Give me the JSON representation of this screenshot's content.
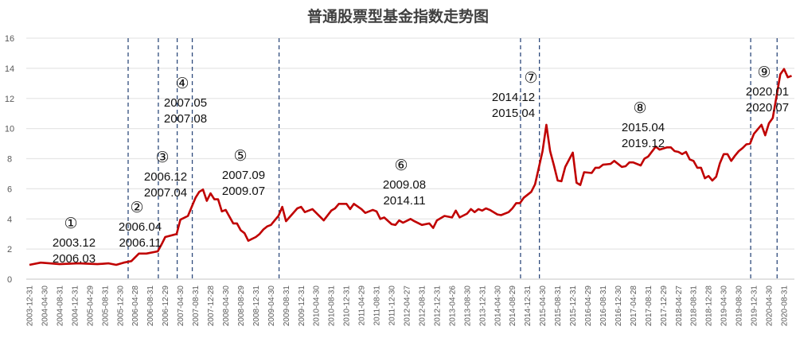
{
  "chart_data": {
    "type": "line",
    "title": "普通股票型基金指数走势图",
    "xlabel": "",
    "ylabel": "",
    "ylim": [
      0,
      16
    ],
    "yticks": [
      0,
      2,
      4,
      6,
      8,
      10,
      12,
      14,
      16
    ],
    "grid": "horizontal",
    "colors": {
      "line": "#C00000",
      "divider": "#2F4B7C",
      "grid": "#E6E6E6"
    },
    "xtick_labels": [
      "2003-12-31",
      "2004-04-30",
      "2004-08-31",
      "2004-12-31",
      "2005-04-29",
      "2005-08-31",
      "2005-12-30",
      "2006-04-28",
      "2006-08-31",
      "2006-12-29",
      "2007-04-30",
      "2007-08-31",
      "2007-12-28",
      "2008-04-30",
      "2008-08-29",
      "2008-12-31",
      "2009-04-30",
      "2009-08-31",
      "2009-12-31",
      "2010-04-30",
      "2010-08-31",
      "2010-12-31",
      "2011-04-29",
      "2011-08-31",
      "2011-12-30",
      "2012-04-27",
      "2012-08-31",
      "2012-12-31",
      "2013-04-26",
      "2013-08-30",
      "2013-12-31",
      "2014-04-30",
      "2014-08-29",
      "2014-12-31",
      "2015-04-30",
      "2015-08-31",
      "2015-12-31",
      "2016-04-29",
      "2016-08-31",
      "2016-12-30",
      "2017-04-28",
      "2017-08-31",
      "2017-12-29",
      "2018-04-27",
      "2018-08-31",
      "2018-12-28",
      "2019-04-30",
      "2019-08-30",
      "2019-12-31",
      "2020-04-30",
      "2020-08-31"
    ],
    "series": [
      {
        "x": [
          "2003-12",
          "2004-03",
          "2004-08",
          "2005-01",
          "2005-06",
          "2005-09",
          "2005-11",
          "2006-01",
          "2006-03",
          "2006-05",
          "2006-07",
          "2006-10",
          "2006-11",
          "2006-12",
          "2007-03",
          "2007-04",
          "2007-06",
          "2007-08",
          "2007-09",
          "2007-10",
          "2007-11",
          "2007-12",
          "2008-01",
          "2008-02",
          "2008-03",
          "2008-04",
          "2008-06",
          "2008-07",
          "2008-08",
          "2008-09",
          "2008-10",
          "2008-12",
          "2009-01",
          "2009-02",
          "2009-03",
          "2009-04",
          "2009-05",
          "2009-06",
          "2009-07",
          "2009-08",
          "2009-11",
          "2009-12",
          "2010-01",
          "2010-03",
          "2010-06",
          "2010-08",
          "2010-09",
          "2010-10",
          "2010-12",
          "2011-01",
          "2011-02",
          "2011-04",
          "2011-05",
          "2011-07",
          "2011-08",
          "2011-09",
          "2011-10",
          "2011-12",
          "2012-01",
          "2012-02",
          "2012-03",
          "2012-05",
          "2012-06",
          "2012-08",
          "2012-10",
          "2012-11",
          "2012-12",
          "2013-02",
          "2013-04",
          "2013-05",
          "2013-06",
          "2013-08",
          "2013-09",
          "2013-10",
          "2013-11",
          "2013-12",
          "2014-01",
          "2014-02",
          "2014-04",
          "2014-05",
          "2014-07",
          "2014-08",
          "2014-09",
          "2014-10",
          "2014-11",
          "2015-01",
          "2015-02",
          "2015-04",
          "2015-05",
          "2015-06",
          "2015-07",
          "2015-08",
          "2015-09",
          "2015-10",
          "2015-12",
          "2016-01",
          "2016-02",
          "2016-03",
          "2016-05",
          "2016-06",
          "2016-07",
          "2016-08",
          "2016-10",
          "2016-11",
          "2017-01",
          "2017-02",
          "2017-03",
          "2017-04",
          "2017-06",
          "2017-07",
          "2017-08",
          "2017-10",
          "2017-11",
          "2018-01",
          "2018-02",
          "2018-03",
          "2018-04",
          "2018-05",
          "2018-06",
          "2018-07",
          "2018-08",
          "2018-09",
          "2018-10",
          "2018-11",
          "2018-12",
          "2019-01",
          "2019-02",
          "2019-03",
          "2019-04",
          "2019-05",
          "2019-06",
          "2019-07",
          "2019-08",
          "2019-09",
          "2019-10",
          "2019-11",
          "2019-12",
          "2020-02",
          "2020-03",
          "2020-04",
          "2020-05",
          "2020-07",
          "2020-08",
          "2020-09",
          "2020-10"
        ],
        "values": [
          0.95,
          1.1,
          1.0,
          1.05,
          1.0,
          1.05,
          0.95,
          1.1,
          1.2,
          1.7,
          1.7,
          1.85,
          2.3,
          2.8,
          3.0,
          3.95,
          4.2,
          5.4,
          5.8,
          5.95,
          5.2,
          5.7,
          5.3,
          5.3,
          4.5,
          4.6,
          3.7,
          3.7,
          3.25,
          3.05,
          2.55,
          2.8,
          3.0,
          3.3,
          3.5,
          3.6,
          3.9,
          4.2,
          4.8,
          3.85,
          4.7,
          4.8,
          4.45,
          4.65,
          3.9,
          4.55,
          4.7,
          5.0,
          5.0,
          4.65,
          5.0,
          4.65,
          4.4,
          4.6,
          4.5,
          4.0,
          4.1,
          3.65,
          3.6,
          3.9,
          3.75,
          4.0,
          3.85,
          3.6,
          3.7,
          3.4,
          3.9,
          4.2,
          4.1,
          4.55,
          4.1,
          4.35,
          4.65,
          4.45,
          4.65,
          4.55,
          4.7,
          4.6,
          4.3,
          4.25,
          4.45,
          4.7,
          5.05,
          5.05,
          5.4,
          5.8,
          6.3,
          8.5,
          10.25,
          8.5,
          7.55,
          6.55,
          6.5,
          7.45,
          8.4,
          6.4,
          6.25,
          7.1,
          7.05,
          7.4,
          7.4,
          7.6,
          7.65,
          7.85,
          7.45,
          7.5,
          7.75,
          7.75,
          7.55,
          8.0,
          8.15,
          8.8,
          8.6,
          8.75,
          8.75,
          8.5,
          8.45,
          8.3,
          8.45,
          7.95,
          7.85,
          7.4,
          7.4,
          6.7,
          6.85,
          6.55,
          6.8,
          7.7,
          8.3,
          8.3,
          7.85,
          8.2,
          8.5,
          8.7,
          8.95,
          9.0,
          9.65,
          10.25,
          9.55,
          10.35,
          10.7,
          13.6,
          13.95,
          13.4,
          13.5
        ]
      }
    ],
    "dividers": [
      "2006-03",
      "2006-11",
      "2007-04",
      "2007-08",
      "2009-07",
      "2014-11",
      "2015-04",
      "2019-12",
      "2020-07"
    ],
    "annotations": [
      {
        "num": "①",
        "start": "2003.12",
        "end": "2006.03"
      },
      {
        "num": "②",
        "start": "2006.04",
        "end": "2006.11"
      },
      {
        "num": "③",
        "start": "2006.12",
        "end": "2007.04"
      },
      {
        "num": "④",
        "start": "2007.05",
        "end": "2007.08"
      },
      {
        "num": "⑤",
        "start": "2007.09",
        "end": "2009.07"
      },
      {
        "num": "⑥",
        "start": "2009.08",
        "end": "2014.11"
      },
      {
        "num": "⑦",
        "start": "2014.12",
        "end": "2015.04"
      },
      {
        "num": "⑧",
        "start": "2015.04",
        "end": "2019.12"
      },
      {
        "num": "⑨",
        "start": "2020.01",
        "end": "2020.07"
      }
    ]
  }
}
